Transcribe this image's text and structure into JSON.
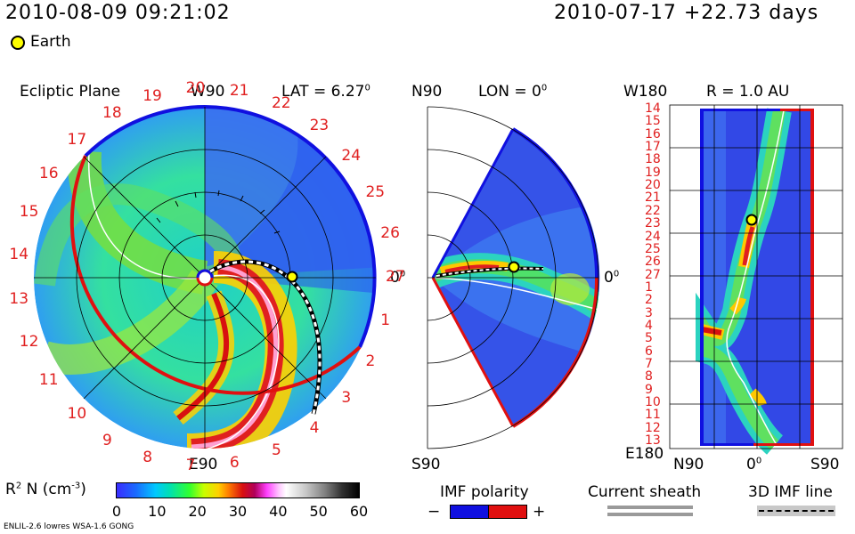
{
  "header": {
    "datetime": "2010-08-09 09:21:02",
    "reference": "2010-07-17 +22.73 days",
    "earth_label": "Earth"
  },
  "ecliptic": {
    "title": "Ecliptic Plane",
    "top_label": "W90",
    "bottom_label": "E90",
    "lat": "LAT = 6.27",
    "lat_deg": "0",
    "zero_label": "0",
    "zero_deg": "0",
    "carrington_ticks": [
      "1",
      "2",
      "3",
      "4",
      "5",
      "6",
      "7",
      "8",
      "9",
      "10",
      "11",
      "12",
      "13",
      "14",
      "15",
      "16",
      "17",
      "18",
      "19",
      "20",
      "21",
      "22",
      "23",
      "24",
      "25",
      "26",
      "27"
    ]
  },
  "meridional": {
    "top_label": "N90",
    "bottom_label": "S90",
    "lon": "LON = 0",
    "lon_deg": "0",
    "zero_label": "0",
    "zero_deg": "0"
  },
  "sphere": {
    "radius": "R = 1.0 AU",
    "top_label": "W180",
    "bottom_label": "E180",
    "bottom_axis": [
      "N90",
      "0",
      "S90"
    ],
    "bottom_axis_deg": "0",
    "row_labels": [
      "14",
      "15",
      "16",
      "17",
      "18",
      "19",
      "20",
      "21",
      "22",
      "23",
      "24",
      "25",
      "26",
      "27",
      "1",
      "2",
      "3",
      "4",
      "5",
      "6",
      "7",
      "8",
      "9",
      "10",
      "11",
      "12",
      "13"
    ]
  },
  "colorbar": {
    "label": "R",
    "label_sup": "2",
    "label_rest": " N (cm",
    "label_exp": "-3",
    "label_end": ")",
    "ticks": [
      "0",
      "10",
      "20",
      "30",
      "40",
      "50",
      "60"
    ]
  },
  "imf_polarity": {
    "title": "IMF polarity",
    "minus": "−",
    "plus": "+"
  },
  "current_sheath": {
    "title": "Current sheath"
  },
  "imf_line": {
    "title": "3D IMF line"
  },
  "footer": {
    "model": "ENLIL-2.6 lowres WSA-1.6 GONG"
  },
  "colors": {
    "negative_polarity": "#1010e0",
    "positive_polarity": "#e01010",
    "background_field": "#2bd3c0",
    "earth": "#ffff00"
  }
}
